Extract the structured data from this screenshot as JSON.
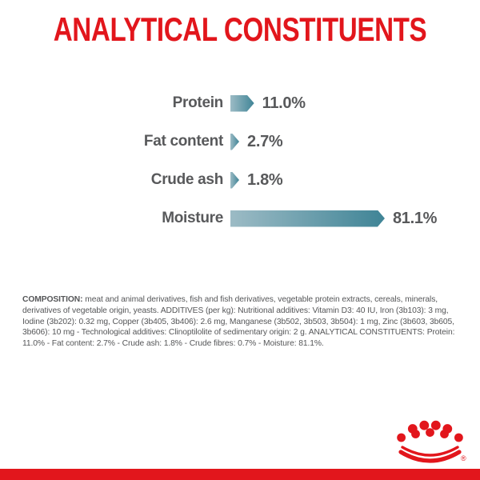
{
  "title": "ANALYTICAL CONSTITUENTS",
  "chart_data": {
    "type": "bar",
    "orientation": "horizontal",
    "title": "ANALYTICAL CONSTITUENTS",
    "categories": [
      "Protein",
      "Fat content",
      "Crude ash",
      "Moisture"
    ],
    "values": [
      11.0,
      2.7,
      1.8,
      81.1
    ],
    "value_labels": [
      "11.0%",
      "2.7%",
      "1.8%",
      "81.1%"
    ],
    "unit": "%",
    "xlim": [
      0,
      85
    ],
    "grid": false,
    "legend": "none",
    "bar_gradient": [
      "#9cbbc5",
      "#3f8496"
    ]
  },
  "composition": {
    "label": "COMPOSITION:",
    "text": " meat and animal derivatives, fish and fish derivatives, vegetable protein extracts, cereals, minerals, derivatives of vegetable origin, yeasts. ADDITIVES (per kg): Nutritional additives: Vitamin D3: 40 IU, Iron (3b103): 3 mg, Iodine (3b202): 0.32 mg, Copper (3b405, 3b406): 2.6 mg, Manganese (3b502, 3b503, 3b504): 1 mg, Zinc (3b603, 3b605, 3b606): 10 mg - Technological additives: Clinoptilolite of sedimentary origin: 2 g. ANALYTICAL CONSTITUENTS: Protein: 11.0% - Fat content: 2.7% - Crude ash: 1.8% - Crude fibres: 0.7% - Moisture: 81.1%."
  },
  "branding": {
    "logo": "royal-canin-crown",
    "registered_mark": "®"
  },
  "colors": {
    "brand_red": "#e2161c",
    "text_gray": "#58595b",
    "bar_teal_light": "#9cbbc5",
    "bar_teal_dark": "#3f8496"
  }
}
